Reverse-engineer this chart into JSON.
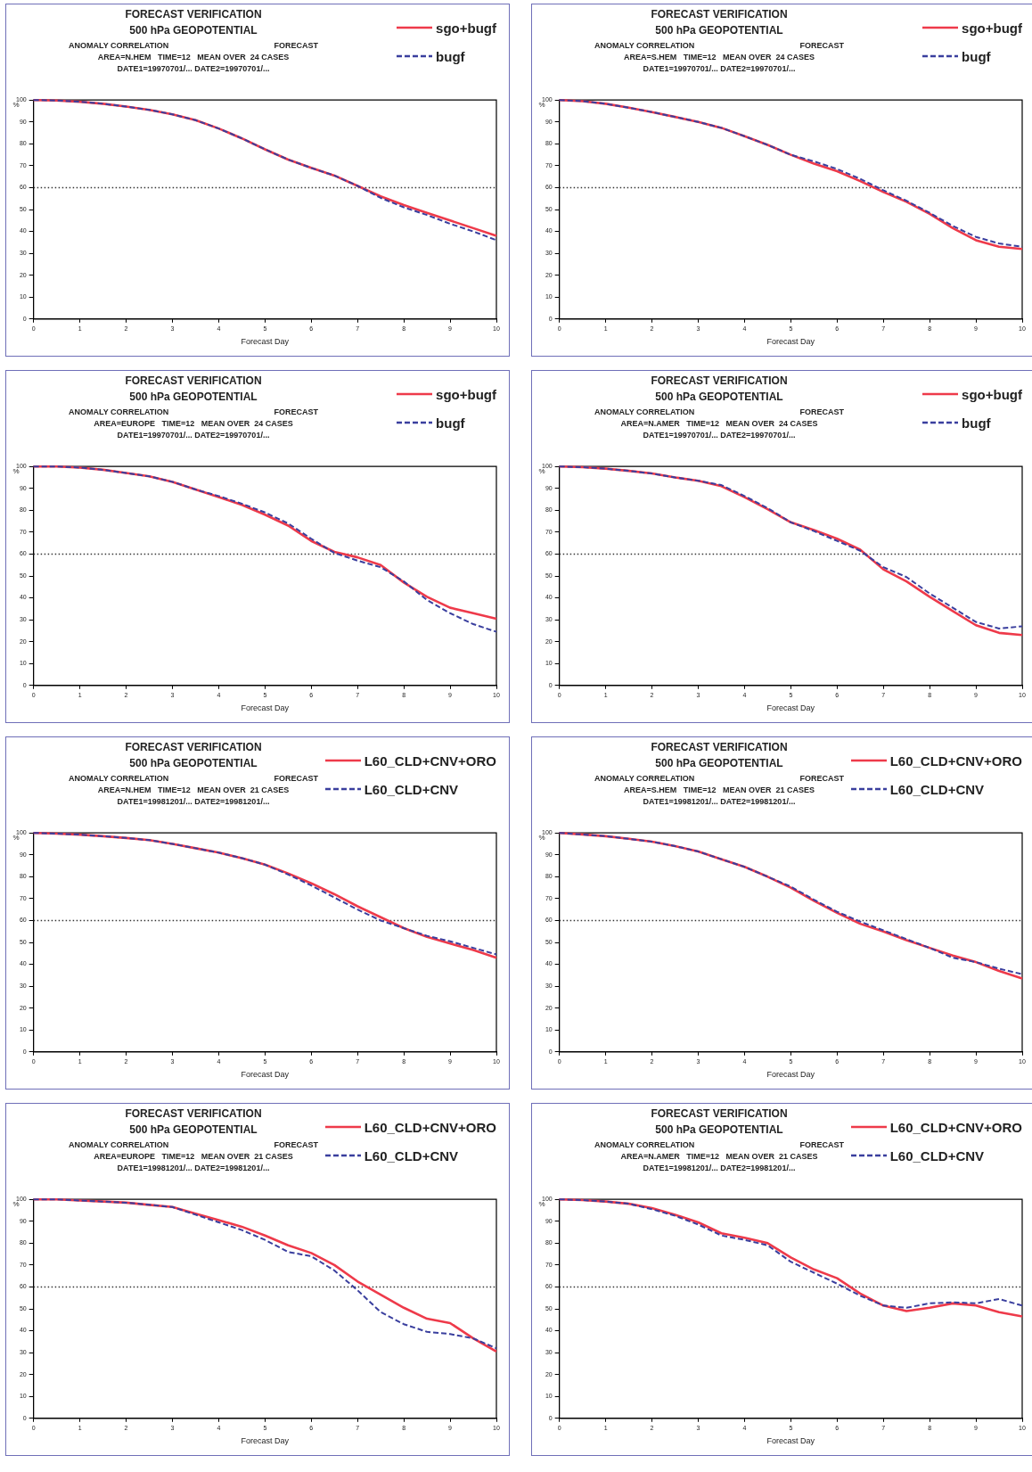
{
  "chart_data": [
    {
      "type": "line",
      "title": "FORECAST VERIFICATION",
      "subtitle": "500 hPa GEOPOTENTIAL",
      "annotations": [
        "ANOMALY CORRELATION",
        "FORECAST",
        "AREA=N.HEM   TIME=12   MEAN OVER  24 CASES",
        "DATE1=19970701/... DATE2=19970701/..."
      ],
      "xlabel": "Forecast Day",
      "ylabel": "%",
      "x": [
        0,
        0.5,
        1,
        1.5,
        2,
        2.5,
        3,
        3.5,
        4,
        4.5,
        5,
        5.5,
        6,
        6.5,
        7,
        7.5,
        8,
        8.5,
        9,
        9.5,
        10
      ],
      "xlim": [
        0,
        10
      ],
      "xticks": [
        0,
        1,
        2,
        3,
        4,
        5,
        6,
        7,
        8,
        9,
        10
      ],
      "ylim": [
        0,
        100
      ],
      "yticks": [
        0,
        10,
        20,
        30,
        40,
        50,
        60,
        70,
        80,
        90,
        100
      ],
      "grid": false,
      "marker": "none",
      "legend": "top right",
      "ref_lines": [
        {
          "axis": "y",
          "value": 60,
          "color": "#333333",
          "line_style": "dotted"
        }
      ],
      "series": [
        {
          "name": "sgo+bugf",
          "color": "#ee3a4a",
          "line_style": "solid",
          "values": [
            100,
            99.8,
            99.2,
            98.3,
            97,
            95.5,
            93.5,
            90.8,
            87,
            82.5,
            77.5,
            72.8,
            69,
            65.5,
            60.8,
            56,
            52,
            48.5,
            45,
            41.5,
            38
          ]
        },
        {
          "name": "bugf",
          "color": "#3a3f9e",
          "line_style": "dashed",
          "values": [
            100,
            99.8,
            99.2,
            98.3,
            97,
            95.5,
            93.5,
            90.8,
            87,
            82.5,
            77.5,
            72.8,
            69,
            65.5,
            60.8,
            55.3,
            51,
            47.5,
            43.5,
            40,
            36
          ]
        }
      ]
    },
    {
      "type": "line",
      "title": "FORECAST VERIFICATION",
      "subtitle": "500 hPa GEOPOTENTIAL",
      "annotations": [
        "ANOMALY CORRELATION",
        "FORECAST",
        "AREA=S.HEM   TIME=12   MEAN OVER  24 CASES",
        "DATE1=19970701/... DATE2=19970701/..."
      ],
      "xlabel": "Forecast Day",
      "ylabel": "%",
      "x": [
        0,
        0.5,
        1,
        1.5,
        2,
        2.5,
        3,
        3.5,
        4,
        4.5,
        5,
        5.5,
        6,
        6.5,
        7,
        7.5,
        8,
        8.5,
        9,
        9.5,
        10
      ],
      "xlim": [
        0,
        10
      ],
      "xticks": [
        0,
        1,
        2,
        3,
        4,
        5,
        6,
        7,
        8,
        9,
        10
      ],
      "ylim": [
        0,
        100
      ],
      "yticks": [
        0,
        10,
        20,
        30,
        40,
        50,
        60,
        70,
        80,
        90,
        100
      ],
      "grid": false,
      "marker": "none",
      "legend": "top right",
      "ref_lines": [
        {
          "axis": "y",
          "value": 60,
          "color": "#333333",
          "line_style": "dotted"
        }
      ],
      "series": [
        {
          "name": "sgo+bugf",
          "color": "#ee3a4a",
          "line_style": "solid",
          "values": [
            100,
            99.5,
            98.3,
            96.5,
            94.5,
            92.3,
            90,
            87.3,
            83.5,
            79.5,
            75,
            71,
            67.5,
            63,
            58,
            53.5,
            48,
            41.5,
            36,
            33,
            32
          ]
        },
        {
          "name": "bugf",
          "color": "#3a3f9e",
          "line_style": "dashed",
          "values": [
            100,
            99.5,
            98.3,
            96.5,
            94.5,
            92.3,
            90,
            87.3,
            83.5,
            79.5,
            75,
            72,
            68.5,
            64,
            58.8,
            54,
            48.5,
            42.5,
            37.5,
            34.5,
            33
          ]
        }
      ]
    },
    {
      "type": "line",
      "title": "FORECAST VERIFICATION",
      "subtitle": "500 hPa GEOPOTENTIAL",
      "annotations": [
        "ANOMALY CORRELATION",
        "FORECAST",
        "AREA=EUROPE   TIME=12   MEAN OVER  24 CASES",
        "DATE1=19970701/... DATE2=19970701/..."
      ],
      "xlabel": "Forecast Day",
      "ylabel": "%",
      "x": [
        0,
        0.5,
        1,
        1.5,
        2,
        2.5,
        3,
        3.5,
        4,
        4.5,
        5,
        5.5,
        6,
        6.5,
        7,
        7.5,
        8,
        8.5,
        9,
        9.5,
        10
      ],
      "xlim": [
        0,
        10
      ],
      "xticks": [
        0,
        1,
        2,
        3,
        4,
        5,
        6,
        7,
        8,
        9,
        10
      ],
      "ylim": [
        0,
        100
      ],
      "yticks": [
        0,
        10,
        20,
        30,
        40,
        50,
        60,
        70,
        80,
        90,
        100
      ],
      "grid": false,
      "marker": "none",
      "legend": "top right",
      "ref_lines": [
        {
          "axis": "y",
          "value": 60,
          "color": "#333333",
          "line_style": "dotted"
        }
      ],
      "series": [
        {
          "name": "sgo+bugf",
          "color": "#ee3a4a",
          "line_style": "solid",
          "values": [
            100,
            100,
            99.5,
            98.5,
            97,
            95.5,
            93,
            89.5,
            86,
            82.5,
            78,
            73,
            66,
            61,
            58.5,
            55,
            47,
            40.5,
            35.5,
            33,
            30.5
          ]
        },
        {
          "name": "bugf",
          "color": "#3a3f9e",
          "line_style": "dashed",
          "values": [
            100,
            100,
            99.5,
            98.5,
            97,
            95.5,
            93,
            89.5,
            86.5,
            83,
            79,
            74,
            67,
            60.5,
            57,
            54,
            47.5,
            39,
            33,
            28,
            24.5
          ]
        }
      ]
    },
    {
      "type": "line",
      "title": "FORECAST VERIFICATION",
      "subtitle": "500 hPa GEOPOTENTIAL",
      "annotations": [
        "ANOMALY CORRELATION",
        "FORECAST",
        "AREA=N.AMER   TIME=12   MEAN OVER  24 CASES",
        "DATE1=19970701/... DATE2=19970701/..."
      ],
      "xlabel": "Forecast Day",
      "ylabel": "%",
      "x": [
        0,
        0.5,
        1,
        1.5,
        2,
        2.5,
        3,
        3.5,
        4,
        4.5,
        5,
        5.5,
        6,
        6.5,
        7,
        7.5,
        8,
        8.5,
        9,
        9.5,
        10
      ],
      "xlim": [
        0,
        10
      ],
      "xticks": [
        0,
        1,
        2,
        3,
        4,
        5,
        6,
        7,
        8,
        9,
        10
      ],
      "ylim": [
        0,
        100
      ],
      "yticks": [
        0,
        10,
        20,
        30,
        40,
        50,
        60,
        70,
        80,
        90,
        100
      ],
      "grid": false,
      "marker": "none",
      "legend": "top right",
      "ref_lines": [
        {
          "axis": "y",
          "value": 60,
          "color": "#333333",
          "line_style": "dotted"
        }
      ],
      "series": [
        {
          "name": "sgo+bugf",
          "color": "#ee3a4a",
          "line_style": "solid",
          "values": [
            100,
            99.7,
            99,
            98,
            96.8,
            95,
            93.5,
            91,
            86,
            80.5,
            74.5,
            71,
            67,
            62,
            53,
            47.5,
            40.5,
            34,
            27.5,
            24,
            23
          ]
        },
        {
          "name": "bugf",
          "color": "#3a3f9e",
          "line_style": "dashed",
          "values": [
            100,
            99.7,
            99,
            98,
            96.8,
            95,
            93.5,
            91.5,
            86.5,
            81,
            74.5,
            70.5,
            66,
            61.5,
            54,
            49.5,
            42,
            35.5,
            29,
            26,
            27
          ]
        }
      ]
    },
    {
      "type": "line",
      "title": "FORECAST VERIFICATION",
      "subtitle": "500 hPa GEOPOTENTIAL",
      "annotations": [
        "ANOMALY CORRELATION",
        "FORECAST",
        "AREA=N.HEM   TIME=12   MEAN OVER  21 CASES",
        "DATE1=19981201/... DATE2=19981201/..."
      ],
      "xlabel": "Forecast Day",
      "ylabel": "%",
      "x": [
        0,
        0.5,
        1,
        1.5,
        2,
        2.5,
        3,
        3.5,
        4,
        4.5,
        5,
        5.5,
        6,
        6.5,
        7,
        7.5,
        8,
        8.5,
        9,
        9.5,
        10
      ],
      "xlim": [
        0,
        10
      ],
      "xticks": [
        0,
        1,
        2,
        3,
        4,
        5,
        6,
        7,
        8,
        9,
        10
      ],
      "ylim": [
        0,
        100
      ],
      "yticks": [
        0,
        10,
        20,
        30,
        40,
        50,
        60,
        70,
        80,
        90,
        100
      ],
      "grid": false,
      "marker": "none",
      "legend": "top right",
      "ref_lines": [
        {
          "axis": "y",
          "value": 60,
          "color": "#333333",
          "line_style": "dotted"
        }
      ],
      "series": [
        {
          "name": "L60_CLD+CNV+ORO",
          "color": "#ee3a4a",
          "line_style": "solid",
          "values": [
            100,
            99.7,
            99.2,
            98.5,
            97.7,
            96.7,
            95,
            93,
            91,
            88.5,
            85.5,
            81.5,
            77,
            72,
            66.5,
            61.5,
            56.5,
            52.5,
            49.5,
            46.5,
            43
          ]
        },
        {
          "name": "L60_CLD+CNV",
          "color": "#3a3f9e",
          "line_style": "dashed",
          "values": [
            100,
            99.7,
            99.2,
            98.5,
            97.7,
            96.7,
            95,
            93,
            91,
            88.5,
            85.5,
            81,
            76,
            70.5,
            65,
            60,
            56.5,
            53,
            50.5,
            47.5,
            44.5
          ]
        }
      ]
    },
    {
      "type": "line",
      "title": "FORECAST VERIFICATION",
      "subtitle": "500 hPa GEOPOTENTIAL",
      "annotations": [
        "ANOMALY CORRELATION",
        "FORECAST",
        "AREA=S.HEM   TIME=12   MEAN OVER  21 CASES",
        "DATE1=19981201/... DATE2=19981201/..."
      ],
      "xlabel": "Forecast Day",
      "ylabel": "%",
      "x": [
        0,
        0.5,
        1,
        1.5,
        2,
        2.5,
        3,
        3.5,
        4,
        4.5,
        5,
        5.5,
        6,
        6.5,
        7,
        7.5,
        8,
        8.5,
        9,
        9.5,
        10
      ],
      "xlim": [
        0,
        10
      ],
      "xticks": [
        0,
        1,
        2,
        3,
        4,
        5,
        6,
        7,
        8,
        9,
        10
      ],
      "ylim": [
        0,
        100
      ],
      "yticks": [
        0,
        10,
        20,
        30,
        40,
        50,
        60,
        70,
        80,
        90,
        100
      ],
      "grid": false,
      "marker": "none",
      "legend": "top right",
      "ref_lines": [
        {
          "axis": "y",
          "value": 60,
          "color": "#333333",
          "line_style": "dotted"
        }
      ],
      "series": [
        {
          "name": "L60_CLD+CNV+ORO",
          "color": "#ee3a4a",
          "line_style": "solid",
          "values": [
            100,
            99.3,
            98.5,
            97.3,
            96,
            94,
            91.5,
            88,
            84.5,
            80,
            75,
            69,
            63.5,
            58.5,
            55,
            51,
            47.5,
            44,
            41,
            37,
            33.5
          ]
        },
        {
          "name": "L60_CLD+CNV",
          "color": "#3a3f9e",
          "line_style": "dashed",
          "values": [
            100,
            99.3,
            98.5,
            97.3,
            96,
            94,
            91.5,
            88,
            84.5,
            80,
            75.5,
            69.5,
            64,
            59.5,
            55.5,
            51.5,
            47.5,
            43,
            41,
            38,
            35.5
          ]
        }
      ]
    },
    {
      "type": "line",
      "title": "FORECAST VERIFICATION",
      "subtitle": "500 hPa GEOPOTENTIAL",
      "annotations": [
        "ANOMALY CORRELATION",
        "FORECAST",
        "AREA=EUROPE   TIME=12   MEAN OVER  21 CASES",
        "DATE1=19981201/... DATE2=19981201/..."
      ],
      "xlabel": "Forecast Day",
      "ylabel": "%",
      "x": [
        0,
        0.5,
        1,
        1.5,
        2,
        2.5,
        3,
        3.5,
        4,
        4.5,
        5,
        5.5,
        6,
        6.5,
        7,
        7.5,
        8,
        8.5,
        9,
        9.5,
        10
      ],
      "xlim": [
        0,
        10
      ],
      "xticks": [
        0,
        1,
        2,
        3,
        4,
        5,
        6,
        7,
        8,
        9,
        10
      ],
      "ylim": [
        0,
        100
      ],
      "yticks": [
        0,
        10,
        20,
        30,
        40,
        50,
        60,
        70,
        80,
        90,
        100
      ],
      "grid": false,
      "marker": "none",
      "legend": "top right",
      "ref_lines": [
        {
          "axis": "y",
          "value": 60,
          "color": "#333333",
          "line_style": "dotted"
        }
      ],
      "series": [
        {
          "name": "L60_CLD+CNV+ORO",
          "color": "#ee3a4a",
          "line_style": "solid",
          "values": [
            100,
            100,
            99.5,
            99,
            98.5,
            97.5,
            96.5,
            93.5,
            90.5,
            87.5,
            83.5,
            79,
            75.5,
            70,
            62.5,
            56.5,
            50.5,
            45.5,
            43.5,
            36.5,
            30.5
          ]
        },
        {
          "name": "L60_CLD+CNV",
          "color": "#3a3f9e",
          "line_style": "dashed",
          "values": [
            100,
            100,
            99.5,
            99,
            98.5,
            97.5,
            96.5,
            93,
            89.5,
            86,
            81.5,
            76,
            74,
            67.5,
            58.5,
            48.5,
            43,
            39.5,
            38.5,
            36.5,
            32
          ]
        }
      ]
    },
    {
      "type": "line",
      "title": "FORECAST VERIFICATION",
      "subtitle": "500 hPa GEOPOTENTIAL",
      "annotations": [
        "ANOMALY CORRELATION",
        "FORECAST",
        "AREA=N.AMER   TIME=12   MEAN OVER  21 CASES",
        "DATE1=19981201/... DATE2=19981201/..."
      ],
      "xlabel": "Forecast Day",
      "ylabel": "%",
      "x": [
        0,
        0.5,
        1,
        1.5,
        2,
        2.5,
        3,
        3.5,
        4,
        4.5,
        5,
        5.5,
        6,
        6.5,
        7,
        7.5,
        8,
        8.5,
        9,
        9.5,
        10
      ],
      "xlim": [
        0,
        10
      ],
      "xticks": [
        0,
        1,
        2,
        3,
        4,
        5,
        6,
        7,
        8,
        9,
        10
      ],
      "ylim": [
        0,
        100
      ],
      "yticks": [
        0,
        10,
        20,
        30,
        40,
        50,
        60,
        70,
        80,
        90,
        100
      ],
      "grid": false,
      "marker": "none",
      "legend": "top right",
      "ref_lines": [
        {
          "axis": "y",
          "value": 60,
          "color": "#333333",
          "line_style": "dotted"
        }
      ],
      "series": [
        {
          "name": "L60_CLD+CNV+ORO",
          "color": "#ee3a4a",
          "line_style": "solid",
          "values": [
            100,
            99.7,
            99,
            98,
            96,
            93,
            89.5,
            84.5,
            82.5,
            80,
            73.5,
            68,
            64,
            57,
            51.5,
            49,
            50.5,
            52.5,
            51.5,
            48.5,
            46.5
          ]
        },
        {
          "name": "L60_CLD+CNV",
          "color": "#3a3f9e",
          "line_style": "dashed",
          "values": [
            100,
            99.7,
            99,
            98,
            95.5,
            92.5,
            88.5,
            83.5,
            81.5,
            79,
            71.5,
            66.5,
            61.5,
            56,
            51.5,
            50.5,
            52.5,
            53,
            52.5,
            54.5,
            51.5
          ]
        }
      ]
    }
  ]
}
